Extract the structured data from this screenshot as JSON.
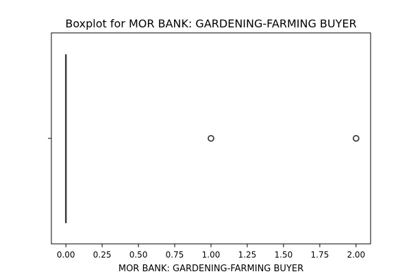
{
  "chart_data": {
    "type": "boxplot",
    "title": "Boxplot for MOR BANK: GARDENING-FARMING BUYER",
    "xlabel": "MOR BANK: GARDENING-FARMING BUYER",
    "ylabel": "",
    "orientation": "horizontal",
    "xlim": [
      -0.1,
      2.1
    ],
    "x_ticks": [
      0.0,
      0.25,
      0.5,
      0.75,
      1.0,
      1.25,
      1.5,
      1.75,
      2.0
    ],
    "x_tick_labels": [
      "0.00",
      "0.25",
      "0.50",
      "0.75",
      "1.00",
      "1.25",
      "1.50",
      "1.75",
      "2.00"
    ],
    "box": {
      "min": 0.0,
      "q1": 0.0,
      "median": 0.0,
      "q3": 0.0,
      "max": 0.0
    },
    "outliers": [
      1.0,
      2.0
    ],
    "grid": false,
    "colors": {
      "box_edge": "#3d3d3d",
      "outlier_edge": "#3d3d3d",
      "axis": "#000000"
    }
  }
}
